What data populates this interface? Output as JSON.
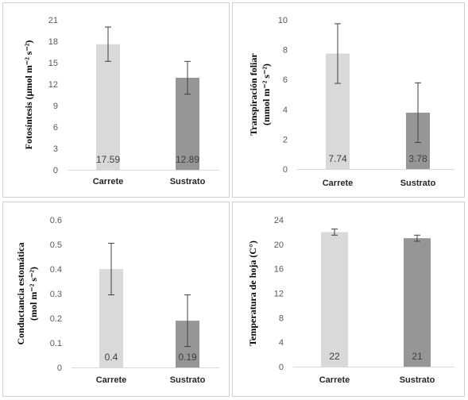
{
  "chart_data": [
    {
      "type": "bar",
      "categories": [
        "Carrete",
        "Sustrato"
      ],
      "values": [
        17.59,
        12.89
      ],
      "value_labels": [
        "17.59",
        "12.89"
      ],
      "error": [
        2.4,
        2.3
      ],
      "ylabel": "Fotosíntesis (µmol m⁻² s⁻²)",
      "ylim": [
        0,
        21
      ],
      "yticks": [
        "0",
        "3",
        "6",
        "9",
        "12",
        "15",
        "18",
        "21"
      ],
      "bar_colors": [
        "#d9d9d9",
        "#969696"
      ]
    },
    {
      "type": "bar",
      "categories": [
        "Carrete",
        "Sustrato"
      ],
      "values": [
        7.74,
        3.78
      ],
      "value_labels": [
        "7.74",
        "3.78"
      ],
      "error": [
        2.0,
        2.0
      ],
      "ylabel_lines": [
        "Transpiración foliar",
        "(mmol m⁻² s⁻²)"
      ],
      "ylim": [
        0,
        10
      ],
      "yticks": [
        "0",
        "2",
        "4",
        "6",
        "8",
        "10"
      ],
      "bar_colors": [
        "#d9d9d9",
        "#969696"
      ]
    },
    {
      "type": "bar",
      "categories": [
        "Carrete",
        "Sustrato"
      ],
      "values": [
        0.4,
        0.19
      ],
      "value_labels": [
        "0.4",
        "0.19"
      ],
      "error": [
        0.105,
        0.105
      ],
      "ylabel_lines": [
        "Conductancia estomática",
        "(mol m⁻² s⁻²)"
      ],
      "ylim": [
        0,
        0.6
      ],
      "yticks": [
        "0",
        "0.1",
        "0.2",
        "0.3",
        "0.4",
        "0.5",
        "0.6"
      ],
      "bar_colors": [
        "#d9d9d9",
        "#969696"
      ]
    },
    {
      "type": "bar",
      "categories": [
        "Carrete",
        "Sustrato"
      ],
      "values": [
        22,
        21
      ],
      "value_labels": [
        "22",
        "21"
      ],
      "error": [
        0.5,
        0.5
      ],
      "ylabel": "Temperatura de hoja (C°)",
      "ylim": [
        0,
        24
      ],
      "yticks": [
        "0",
        "4",
        "8",
        "12",
        "16",
        "20",
        "24"
      ],
      "bar_colors": [
        "#d9d9d9",
        "#969696"
      ]
    }
  ]
}
